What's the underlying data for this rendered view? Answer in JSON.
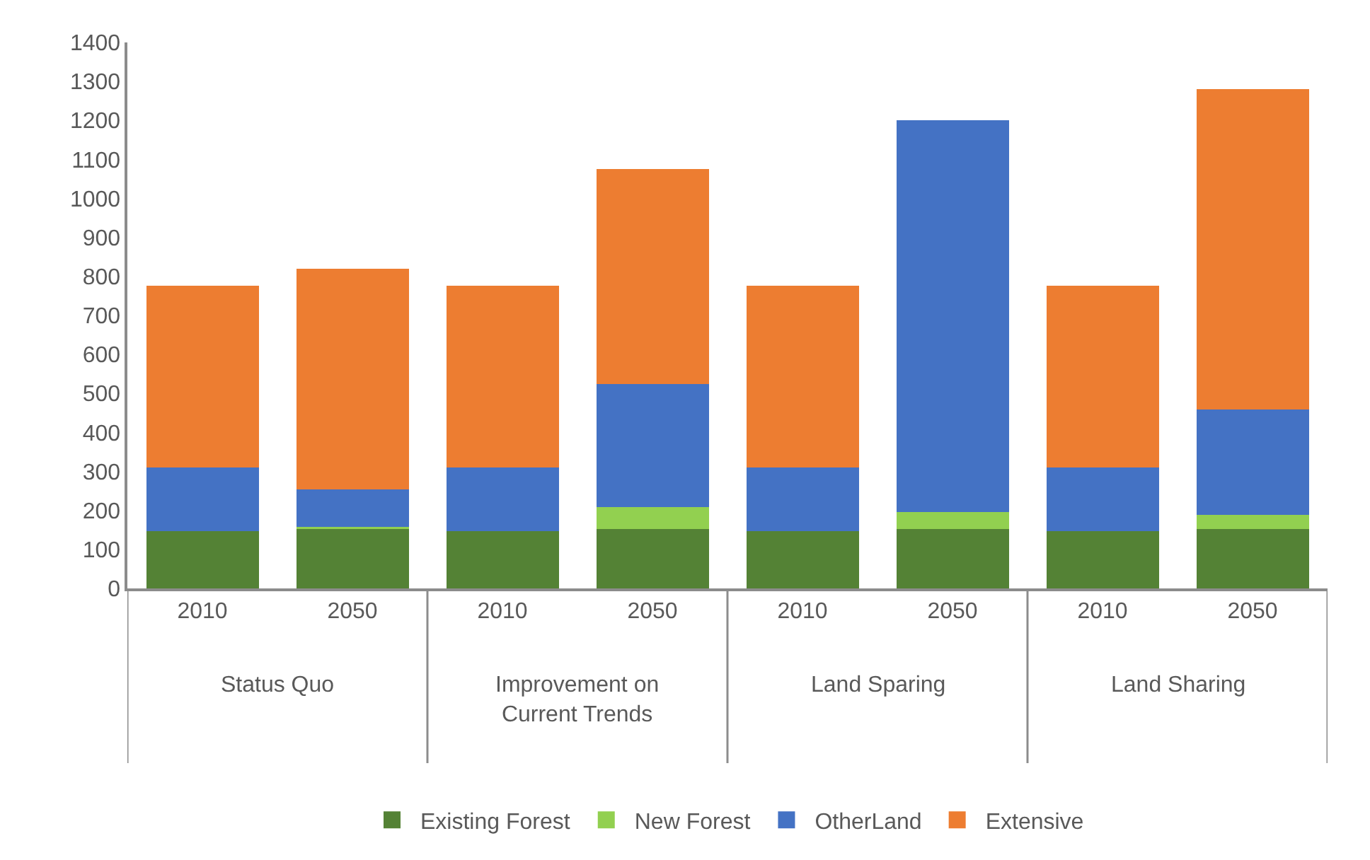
{
  "chart_data": {
    "type": "bar",
    "stacked": true,
    "categories": [
      "2010",
      "2050",
      "2010",
      "2050",
      "2010",
      "2050",
      "2010",
      "2050"
    ],
    "annotations": [
      "Status Quo",
      "Improvement on Current Trends",
      "Land Sparing",
      "Land Sharing"
    ],
    "series": [
      {
        "name": "Existing Forest",
        "color": "#548235",
        "values": [
          147,
          155,
          147,
          152,
          147,
          152,
          147,
          152
        ]
      },
      {
        "name": "New Forest",
        "color": "#92d050",
        "values": [
          0,
          3,
          0,
          56,
          0,
          43,
          0,
          37
        ]
      },
      {
        "name": "OtherLand",
        "color": "#4472c4",
        "values": [
          163,
          96,
          163,
          317,
          163,
          1006,
          163,
          270
        ]
      },
      {
        "name": "Extensive",
        "color": "#ed7d31",
        "values": [
          466,
          565,
          466,
          550,
          466,
          null,
          466,
          821
        ]
      }
    ],
    "ylim": [
      0,
      1400
    ],
    "yticks": [
      0,
      100,
      200,
      300,
      400,
      500,
      600,
      700,
      800,
      900,
      1000,
      1100,
      1200,
      1300,
      1400
    ],
    "grid": false,
    "legend": "bottom"
  }
}
